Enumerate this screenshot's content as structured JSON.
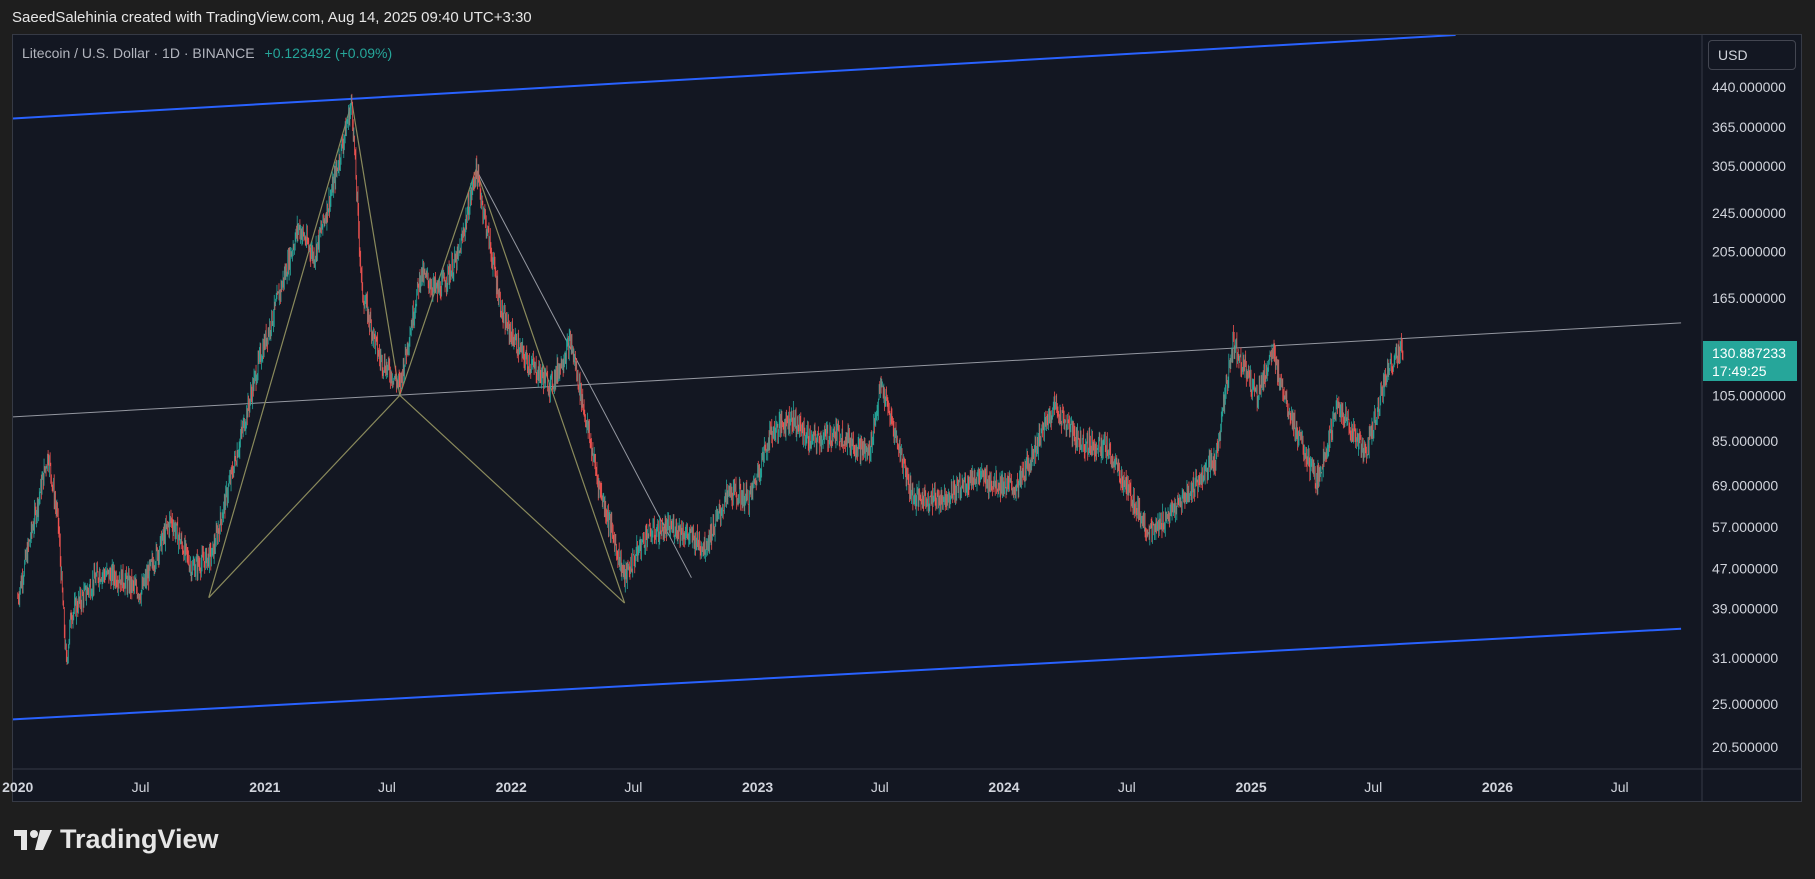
{
  "header": {
    "text": "SaeedSalehinia created with TradingView.com, Aug 14, 2025 09:40 UTC+3:30"
  },
  "legend": {
    "symbol": "Litecoin / U.S. Dollar · 1D · BINANCE",
    "change": "+0.123492 (+0.09%)"
  },
  "currency": "USD",
  "last_price": {
    "price": "130.887233",
    "countdown": "17:49:25"
  },
  "brand": {
    "name": "TradingView"
  },
  "colors": {
    "up": "#26a69a",
    "down": "#ef5350",
    "channel": "#2962ff",
    "pattern": "#8a8a5c",
    "trendline": "#9598a1",
    "background": "#131722"
  },
  "chart_data": {
    "type": "candlestick",
    "symbol": "LTCUSD",
    "timeframe": "1D",
    "yscale": "log",
    "xlim": [
      "2019-12-25",
      "2026-10-31"
    ],
    "ylim": [
      18.5,
      560
    ],
    "y_ticks": [
      {
        "value": 440,
        "label": "440.000000"
      },
      {
        "value": 365,
        "label": "365.000000"
      },
      {
        "value": 305,
        "label": "305.000000"
      },
      {
        "value": 245,
        "label": "245.000000"
      },
      {
        "value": 205,
        "label": "205.000000"
      },
      {
        "value": 165,
        "label": "165.000000"
      },
      {
        "value": 105,
        "label": "105.000000"
      },
      {
        "value": 85,
        "label": "85.000000"
      },
      {
        "value": 69,
        "label": "69.000000"
      },
      {
        "value": 57,
        "label": "57.000000"
      },
      {
        "value": 47,
        "label": "47.000000"
      },
      {
        "value": 39,
        "label": "39.000000"
      },
      {
        "value": 31,
        "label": "31.000000"
      },
      {
        "value": 25,
        "label": "25.000000"
      },
      {
        "value": 20.5,
        "label": "20.500000"
      }
    ],
    "x_ticks": [
      {
        "date": "2020-01-01",
        "label": "2020",
        "bold": true
      },
      {
        "date": "2020-07-01",
        "label": "Jul"
      },
      {
        "date": "2021-01-01",
        "label": "2021",
        "bold": true
      },
      {
        "date": "2021-07-01",
        "label": "Jul"
      },
      {
        "date": "2022-01-01",
        "label": "2022",
        "bold": true
      },
      {
        "date": "2022-07-01",
        "label": "Jul"
      },
      {
        "date": "2023-01-01",
        "label": "2023",
        "bold": true
      },
      {
        "date": "2023-07-01",
        "label": "Jul"
      },
      {
        "date": "2024-01-01",
        "label": "2024",
        "bold": true
      },
      {
        "date": "2024-07-01",
        "label": "Jul"
      },
      {
        "date": "2025-01-01",
        "label": "2025",
        "bold": true
      },
      {
        "date": "2025-07-01",
        "label": "Jul"
      },
      {
        "date": "2026-01-01",
        "label": "2026",
        "bold": true
      },
      {
        "date": "2026-07-01",
        "label": "Jul"
      }
    ],
    "price_path": [
      [
        "2020-01-01",
        41
      ],
      [
        "2020-02-15",
        80
      ],
      [
        "2020-03-01",
        58
      ],
      [
        "2020-03-13",
        30
      ],
      [
        "2020-03-20",
        38
      ],
      [
        "2020-05-01",
        46
      ],
      [
        "2020-06-01",
        45
      ],
      [
        "2020-07-01",
        42
      ],
      [
        "2020-08-15",
        59
      ],
      [
        "2020-09-15",
        47
      ],
      [
        "2020-10-15",
        50
      ],
      [
        "2020-11-25",
        85
      ],
      [
        "2020-12-25",
        125
      ],
      [
        "2021-01-15",
        155
      ],
      [
        "2021-02-20",
        230
      ],
      [
        "2021-03-15",
        200
      ],
      [
        "2021-04-10",
        270
      ],
      [
        "2021-05-10",
        410
      ],
      [
        "2021-05-25",
        170
      ],
      [
        "2021-06-20",
        125
      ],
      [
        "2021-07-20",
        110
      ],
      [
        "2021-08-20",
        185
      ],
      [
        "2021-09-15",
        170
      ],
      [
        "2021-10-15",
        200
      ],
      [
        "2021-11-10",
        300
      ],
      [
        "2021-12-20",
        150
      ],
      [
        "2022-01-20",
        125
      ],
      [
        "2022-03-01",
        110
      ],
      [
        "2022-03-30",
        135
      ],
      [
        "2022-05-10",
        70
      ],
      [
        "2022-06-18",
        45
      ],
      [
        "2022-07-20",
        55
      ],
      [
        "2022-09-01",
        57
      ],
      [
        "2022-10-15",
        52
      ],
      [
        "2022-11-20",
        67
      ],
      [
        "2022-12-20",
        65
      ],
      [
        "2023-01-20",
        88
      ],
      [
        "2023-02-20",
        95
      ],
      [
        "2023-03-20",
        85
      ],
      [
        "2023-05-01",
        88
      ],
      [
        "2023-06-15",
        80
      ],
      [
        "2023-07-03",
        110
      ],
      [
        "2023-08-20",
        65
      ],
      [
        "2023-10-01",
        65
      ],
      [
        "2023-11-20",
        72
      ],
      [
        "2024-01-20",
        68
      ],
      [
        "2024-03-15",
        100
      ],
      [
        "2024-04-20",
        85
      ],
      [
        "2024-06-01",
        82
      ],
      [
        "2024-08-05",
        55
      ],
      [
        "2024-09-15",
        63
      ],
      [
        "2024-11-10",
        78
      ],
      [
        "2024-12-05",
        135
      ],
      [
        "2025-01-10",
        105
      ],
      [
        "2025-02-01",
        128
      ],
      [
        "2025-03-10",
        88
      ],
      [
        "2025-04-08",
        70
      ],
      [
        "2025-05-10",
        100
      ],
      [
        "2025-06-20",
        80
      ],
      [
        "2025-07-22",
        118
      ],
      [
        "2025-08-14",
        130.887233
      ]
    ],
    "drawings": {
      "channel_upper": [
        [
          "2019-12-25",
          380
        ],
        [
          "2025-10-31",
          560
        ]
      ],
      "channel_lower": [
        [
          "2019-12-25",
          23.3
        ],
        [
          "2026-09-30",
          35.5
        ]
      ],
      "trendline": [
        [
          "2019-12-25",
          95
        ],
        [
          "2026-09-30",
          147
        ]
      ],
      "pattern_legs": [
        [
          [
            "2020-10-10",
            41
          ],
          [
            "2021-05-10",
            410
          ]
        ],
        [
          [
            "2021-05-10",
            410
          ],
          [
            "2021-07-20",
            105
          ]
        ],
        [
          [
            "2021-07-20",
            105
          ],
          [
            "2021-11-10",
            300
          ]
        ],
        [
          [
            "2021-11-10",
            300
          ],
          [
            "2022-06-18",
            40
          ]
        ],
        [
          [
            "2020-10-10",
            41
          ],
          [
            "2021-07-20",
            105
          ]
        ],
        [
          [
            "2021-07-20",
            105
          ],
          [
            "2022-06-18",
            40
          ]
        ]
      ],
      "downtrend": [
        [
          "2021-11-10",
          300
        ],
        [
          "2022-09-25",
          45
        ]
      ]
    }
  }
}
